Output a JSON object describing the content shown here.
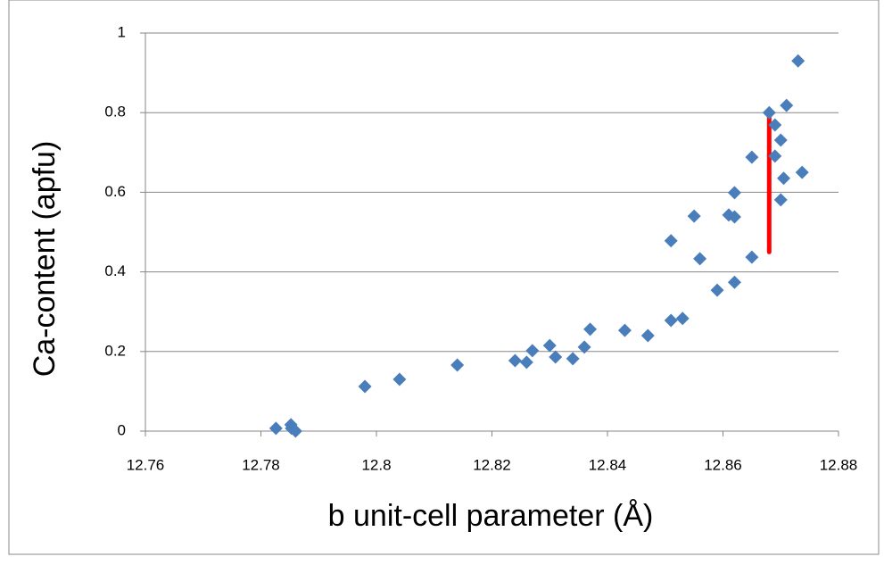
{
  "chart_data": {
    "type": "scatter",
    "xlabel": "b unit-cell parameter (Å)",
    "ylabel": "Ca-content (apfu)",
    "series": [
      {
        "color": "#4a7ebb",
        "x": [
          12.7826,
          12.7852,
          12.7853,
          12.786,
          12.798,
          12.804,
          12.814,
          12.824,
          12.826,
          12.827,
          12.83,
          12.831,
          12.834,
          12.836,
          12.837,
          12.843,
          12.847,
          12.851,
          12.851,
          12.853,
          12.855,
          12.856,
          12.859,
          12.861,
          12.862,
          12.862,
          12.862,
          12.865,
          12.865,
          12.868,
          12.869,
          12.869,
          12.87,
          12.87,
          12.8705,
          12.871,
          12.873,
          12.8737
        ],
        "values": [
          0.007,
          0.016,
          0.007,
          0,
          0.112,
          0.13,
          0.166,
          0.177,
          0.173,
          0.202,
          0.215,
          0.186,
          0.182,
          0.211,
          0.256,
          0.253,
          0.24,
          0.478,
          0.278,
          0.283,
          0.54,
          0.433,
          0.354,
          0.543,
          0.538,
          0.599,
          0.374,
          0.437,
          0.688,
          0.8,
          0.769,
          0.691,
          0.731,
          0.581,
          0.635,
          0.818,
          0.93,
          0.65
        ]
      }
    ],
    "range_line": {
      "x": 12.868,
      "y": [
        0.45,
        0.79
      ],
      "color": "#ff0000"
    },
    "xlim": [
      12.76,
      12.88
    ],
    "xticks": [
      12.76,
      12.78,
      12.8,
      12.82,
      12.84,
      12.86,
      12.88
    ],
    "ylim": [
      0,
      1
    ],
    "yticks": [
      0,
      0.2,
      0.4,
      0.6,
      0.8,
      1
    ],
    "grid": true
  }
}
